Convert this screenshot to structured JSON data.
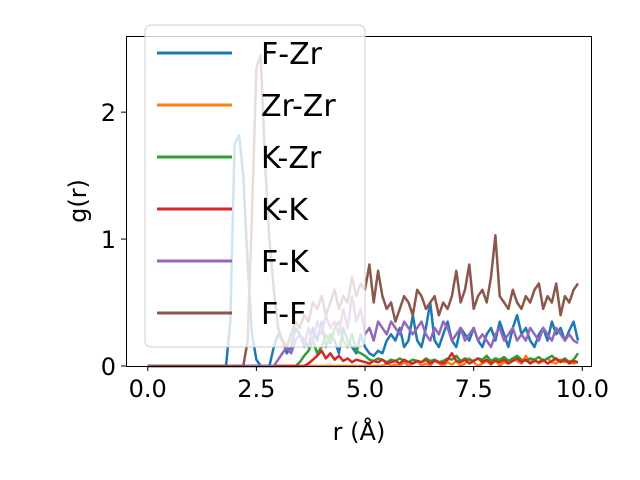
{
  "chart_data": {
    "type": "line",
    "xlabel": "r (Å)",
    "ylabel": "g(r)",
    "xlim": [
      -0.5,
      10.2
    ],
    "ylim": [
      0,
      2.6
    ],
    "xticks": [
      "0.0",
      "2.5",
      "5.0",
      "7.5",
      "10.0"
    ],
    "xtick_values": [
      0,
      2.5,
      5,
      7.5,
      10
    ],
    "yticks": [
      "0",
      "1",
      "2"
    ],
    "ytick_values": [
      0,
      1,
      2
    ],
    "grid": false,
    "legend_position": "upper-left",
    "x": [
      0.0,
      0.1,
      0.2,
      0.3,
      0.4,
      0.5,
      0.6,
      0.7,
      0.8,
      0.9,
      1.0,
      1.1,
      1.2,
      1.3,
      1.4,
      1.5,
      1.6,
      1.7,
      1.8,
      1.9,
      2.0,
      2.1,
      2.2,
      2.3,
      2.4,
      2.5,
      2.6,
      2.7,
      2.8,
      2.9,
      3.0,
      3.1,
      3.2,
      3.3,
      3.4,
      3.5,
      3.6,
      3.7,
      3.8,
      3.9,
      4.0,
      4.1,
      4.2,
      4.3,
      4.4,
      4.5,
      4.6,
      4.7,
      4.8,
      4.9,
      5.0,
      5.1,
      5.2,
      5.3,
      5.4,
      5.5,
      5.6,
      5.7,
      5.8,
      5.9,
      6.0,
      6.1,
      6.2,
      6.3,
      6.4,
      6.5,
      6.6,
      6.7,
      6.8,
      6.9,
      7.0,
      7.1,
      7.2,
      7.3,
      7.4,
      7.5,
      7.6,
      7.7,
      7.8,
      7.9,
      8.0,
      8.1,
      8.2,
      8.3,
      8.4,
      8.5,
      8.6,
      8.7,
      8.8,
      8.9,
      9.0,
      9.1,
      9.2,
      9.3,
      9.4,
      9.5,
      9.6,
      9.7,
      9.8,
      9.9
    ],
    "series": [
      {
        "name": "F-Zr",
        "color": "#1f77b4",
        "values": [
          0,
          0,
          0,
          0,
          0,
          0,
          0,
          0,
          0,
          0,
          0,
          0,
          0,
          0,
          0,
          0,
          0,
          0,
          0,
          0.35,
          1.75,
          1.82,
          1.5,
          0.8,
          0.25,
          0.05,
          0,
          0,
          0,
          0.15,
          0.25,
          0.2,
          0.1,
          0.15,
          0.3,
          0.25,
          0.2,
          0.15,
          0.3,
          0.2,
          0.35,
          0.15,
          0.25,
          0.2,
          0.1,
          0.3,
          0.2,
          0.15,
          0.1,
          0.25,
          0.15,
          0.1,
          0.08,
          0.12,
          0.1,
          0.2,
          0.25,
          0.2,
          0.3,
          0.15,
          0.2,
          0.4,
          0.2,
          0.15,
          0.3,
          0.5,
          0.2,
          0.15,
          0.25,
          0.35,
          0.2,
          0.15,
          0.3,
          0.25,
          0.2,
          0.3,
          0.2,
          0.15,
          0.25,
          0.3,
          0.2,
          0.35,
          0.25,
          0.15,
          0.3,
          0.4,
          0.25,
          0.3,
          0.2,
          0.15,
          0.25,
          0.3,
          0.2,
          0.35,
          0.25,
          0.3,
          0.2,
          0.28,
          0.35,
          0.2
        ]
      },
      {
        "name": "Zr-Zr",
        "color": "#ff7f0e",
        "values": [
          0,
          0,
          0,
          0,
          0,
          0,
          0,
          0,
          0,
          0,
          0,
          0,
          0,
          0,
          0,
          0,
          0,
          0,
          0,
          0,
          0,
          0,
          0,
          0,
          0,
          0,
          0,
          0,
          0,
          0,
          0,
          0,
          0,
          0,
          0,
          0,
          0,
          0,
          0,
          0,
          0,
          0,
          0,
          0,
          0,
          0,
          0,
          0,
          0,
          0,
          0,
          0,
          0,
          0,
          0,
          0.02,
          0,
          0.01,
          0,
          0.03,
          0,
          0.02,
          0.04,
          0,
          0.02,
          0,
          0.05,
          0.02,
          0,
          0.03,
          0.01,
          0.04,
          0,
          0.02,
          0.06,
          0.03,
          0,
          0.02,
          0.04,
          0.01,
          0.05,
          0,
          0.03,
          0.02,
          0.06,
          0.04,
          0.02,
          0.08,
          0.03,
          0.05,
          0.02,
          0.04,
          0.06,
          0.03,
          0.02,
          0.05,
          0.03,
          0.04,
          0.02,
          0.03
        ]
      },
      {
        "name": "K-Zr",
        "color": "#2ca02c",
        "values": [
          0,
          0,
          0,
          0,
          0,
          0,
          0,
          0,
          0,
          0,
          0,
          0,
          0,
          0,
          0,
          0,
          0,
          0,
          0,
          0,
          0,
          0,
          0,
          0,
          0,
          0,
          0,
          0,
          0,
          0,
          0,
          0,
          0,
          0,
          0,
          0.03,
          0.08,
          0.12,
          0.2,
          0.1,
          0.15,
          0.25,
          0.18,
          0.3,
          0.35,
          0.2,
          0.15,
          0.25,
          0.12,
          0.1,
          0.08,
          0.05,
          0.04,
          0.06,
          0.05,
          0.03,
          0.05,
          0.04,
          0.06,
          0.04,
          0.03,
          0.05,
          0.04,
          0.03,
          0.06,
          0.04,
          0.05,
          0.03,
          0.04,
          0.06,
          0.05,
          0.08,
          0.04,
          0.06,
          0.05,
          0.04,
          0.06,
          0.05,
          0.08,
          0.04,
          0.06,
          0.05,
          0.07,
          0.04,
          0.06,
          0.08,
          0.05,
          0.04,
          0.06,
          0.05,
          0.07,
          0.04,
          0.06,
          0.08,
          0.05,
          0.04,
          0.06,
          0.03,
          0.05,
          0.1
        ]
      },
      {
        "name": "K-K",
        "color": "#d62728",
        "values": [
          0,
          0,
          0,
          0,
          0,
          0,
          0,
          0,
          0,
          0,
          0,
          0,
          0,
          0,
          0,
          0,
          0,
          0,
          0,
          0,
          0,
          0,
          0,
          0,
          0,
          0,
          0,
          0,
          0,
          0,
          0,
          0,
          0,
          0,
          0,
          0,
          0,
          0.02,
          0.05,
          0.08,
          0.12,
          0.06,
          0.1,
          0.05,
          0.08,
          0.04,
          0.06,
          0.03,
          0.05,
          0.04,
          0.03,
          0.02,
          0.04,
          0.03,
          0.05,
          0.02,
          0.03,
          0.04,
          0.02,
          0.05,
          0.03,
          0.02,
          0.04,
          0.03,
          0.05,
          0.02,
          0.04,
          0.03,
          0.02,
          0.05,
          0.1,
          0.04,
          0.03,
          0.05,
          0.02,
          0.04,
          0.06,
          0.03,
          0.05,
          0.02,
          0.04,
          0.03,
          0.05,
          0.02,
          0.04,
          0.06,
          0.03,
          0.05,
          0.02,
          0.04,
          0.03,
          0.05,
          0.02,
          0.04,
          0.06,
          0.03,
          0.05,
          0.02,
          0.04,
          0.03
        ]
      },
      {
        "name": "F-K",
        "color": "#9467bd",
        "values": [
          0,
          0,
          0,
          0,
          0,
          0,
          0,
          0,
          0,
          0,
          0,
          0,
          0,
          0,
          0,
          0,
          0,
          0,
          0,
          0,
          0,
          0,
          0,
          0,
          0,
          0,
          0,
          0,
          0,
          0,
          0.05,
          0.1,
          0.15,
          0.1,
          0.2,
          0.25,
          0.15,
          0.3,
          0.2,
          0.35,
          0.25,
          0.4,
          0.3,
          0.35,
          0.25,
          0.45,
          0.3,
          0.55,
          0.35,
          0.45,
          0.25,
          0.3,
          0.2,
          0.35,
          0.3,
          0.25,
          0.35,
          0.3,
          0.25,
          0.35,
          0.3,
          0.25,
          0.3,
          0.35,
          0.25,
          0.2,
          0.3,
          0.25,
          0.35,
          0.3,
          0.2,
          0.25,
          0.3,
          0.2,
          0.25,
          0.3,
          0.2,
          0.25,
          0.2,
          0.15,
          0.25,
          0.3,
          0.2,
          0.25,
          0.3,
          0.2,
          0.25,
          0.2,
          0.3,
          0.25,
          0.2,
          0.3,
          0.25,
          0.2,
          0.3,
          0.25,
          0.2,
          0.25,
          0.2,
          0.18
        ]
      },
      {
        "name": "F-F",
        "color": "#8c564b",
        "values": [
          0,
          0,
          0,
          0,
          0,
          0,
          0,
          0,
          0,
          0,
          0,
          0,
          0,
          0,
          0,
          0,
          0,
          0,
          0,
          0,
          0,
          0,
          0,
          0.2,
          1.2,
          2.35,
          2.45,
          1.6,
          1.0,
          0.6,
          0.3,
          0.2,
          0.15,
          0.25,
          0.35,
          0.3,
          0.4,
          0.35,
          0.5,
          0.45,
          0.55,
          0.4,
          0.5,
          0.6,
          0.45,
          0.55,
          0.5,
          0.7,
          0.55,
          0.65,
          0.6,
          0.8,
          0.5,
          0.75,
          0.55,
          0.45,
          0.5,
          0.35,
          0.45,
          0.55,
          0.5,
          0.4,
          0.6,
          0.55,
          0.45,
          0.5,
          0.55,
          0.4,
          0.5,
          0.45,
          0.55,
          0.75,
          0.5,
          0.6,
          0.8,
          0.45,
          0.55,
          0.6,
          0.5,
          0.7,
          1.03,
          0.55,
          0.5,
          0.45,
          0.6,
          0.5,
          0.45,
          0.55,
          0.5,
          0.6,
          0.65,
          0.45,
          0.55,
          0.5,
          0.65,
          0.4,
          0.55,
          0.5,
          0.6,
          0.65
        ]
      }
    ]
  }
}
